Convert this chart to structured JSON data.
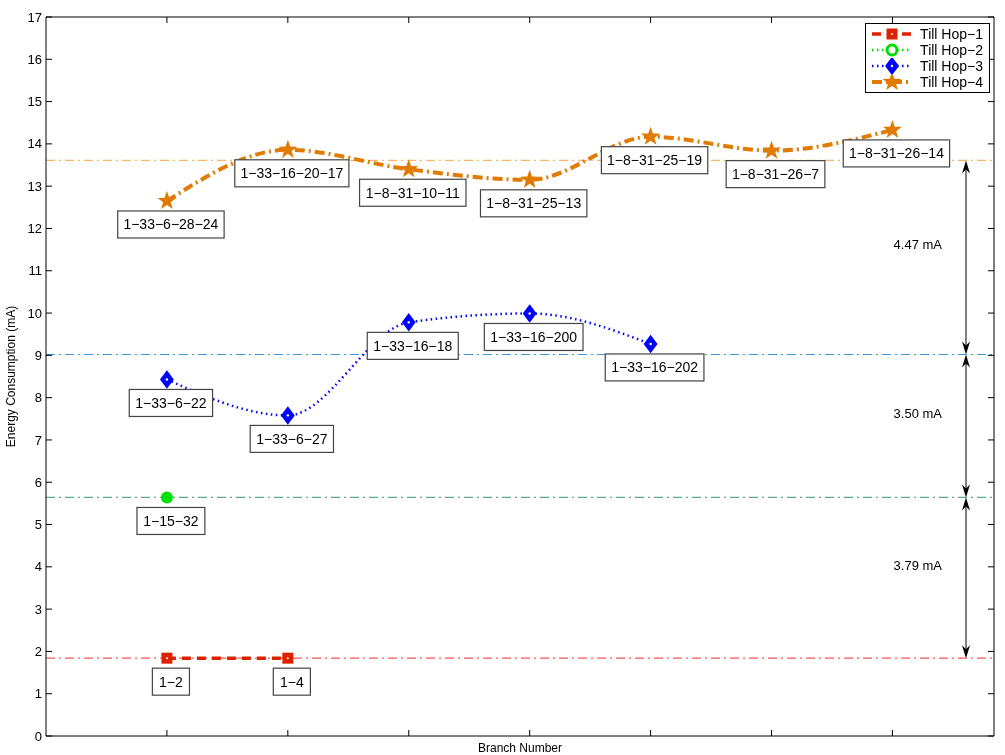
{
  "chart_data": {
    "type": "line",
    "xlabel": "Branch Number",
    "ylabel": "Energy Consumption (mA)",
    "categories": [
      null,
      null,
      null,
      null,
      null,
      null,
      null
    ],
    "series": [
      {
        "name": "Till Hop−1",
        "color": "#dd2200",
        "marker": "square",
        "line_style": "dashed",
        "values": [
          1.84,
          1.84,
          null,
          null,
          null,
          null,
          null
        ]
      },
      {
        "name": "Till Hop−2",
        "color": "#00e000",
        "marker": "circle",
        "line_style": "dotted",
        "values": [
          5.64,
          null,
          null,
          null,
          null,
          null,
          null
        ]
      },
      {
        "name": "Till Hop−3",
        "color": "#0000ff",
        "marker": "diamond",
        "line_style": "dotted",
        "values": [
          8.43,
          7.58,
          9.78,
          9.99,
          9.27,
          null,
          null
        ]
      },
      {
        "name": "Till Hop−4",
        "color": "#e07b00",
        "marker": "star",
        "line_style": "dashdot",
        "values": [
          12.65,
          13.86,
          13.4,
          13.15,
          14.17,
          13.84,
          14.33
        ]
      }
    ],
    "ylim": [
      0,
      17
    ],
    "yticks": [
      0,
      1,
      2,
      3,
      4,
      5,
      6,
      7,
      8,
      9,
      10,
      11,
      12,
      13,
      14,
      15,
      16,
      17
    ],
    "legend": "top right",
    "ref_lines": [
      {
        "axis": "y",
        "value": 13.61,
        "color": "#ffb366",
        "line_style": "dashdot"
      },
      {
        "axis": "y",
        "value": 9.02,
        "color": "#3a9ad9",
        "line_style": "dashdot"
      },
      {
        "axis": "y",
        "value": 5.64,
        "color": "#5fa88a",
        "line_style": "dashdot"
      },
      {
        "axis": "y",
        "value": 1.84,
        "color": "#ff5555",
        "line_style": "dashdot"
      }
    ],
    "annotations": [
      "4.47 mA",
      "3.50 mA",
      "3.79 mA",
      {
        "text": "1−2",
        "y": 1.84
      },
      {
        "text": "1−4",
        "y": 1.84
      },
      {
        "text": "1−15−32",
        "y": 5.64
      },
      {
        "text": "1−33−6−22",
        "y": 8.43
      },
      {
        "text": "1−33−6−27",
        "y": 7.58
      },
      {
        "text": "1−33−16−18",
        "y": 9.78
      },
      {
        "text": "1−33−16−200",
        "y": 9.99
      },
      {
        "text": "1−33−16−202",
        "y": 9.27
      },
      {
        "text": "1−33−6−28−24",
        "y": 12.65
      },
      {
        "text": "1−33−16−20−17",
        "y": 13.86
      },
      {
        "text": "1−8−31−10−11",
        "y": 13.4
      },
      {
        "text": "1−8−31−25−13",
        "y": 13.15
      },
      {
        "text": "1−8−31−25−19",
        "y": 14.17
      },
      {
        "text": "1−8−31−26−7",
        "y": 13.84
      },
      {
        "text": "1−8−31−26−14",
        "y": 14.33
      }
    ]
  }
}
